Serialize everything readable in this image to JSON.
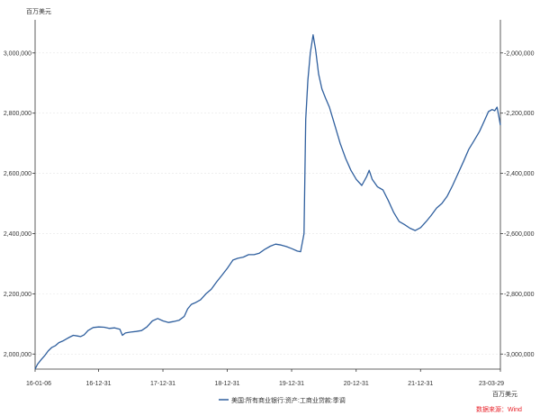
{
  "chart_data": {
    "type": "line",
    "y_unit_left": "百万美元",
    "y_unit_right": "百万美元",
    "source": "数据来源：Wind",
    "x_ticks": [
      "16-01-06",
      "16-12-31",
      "17-12-31",
      "18-12-31",
      "19-12-31",
      "20-12-31",
      "21-12-31",
      "23-03-29"
    ],
    "x_range": [
      "2016-01-06",
      "2023-03-29"
    ],
    "y_left_ticks": [
      "2,000,000",
      "2,200,000",
      "2,400,000",
      "2,600,000",
      "2,800,000",
      "3,000,000"
    ],
    "y_right_ticks": [
      "-2,000,000",
      "-2,200,000",
      "-2,400,000",
      "-2,600,000",
      "-2,800,000",
      "-3,000,000"
    ],
    "y_left_range": [
      1950000,
      3110000
    ],
    "y_right_range": [
      -3050000,
      -1890000
    ],
    "grid": true,
    "legend_position": "bottom",
    "colors": {
      "line": "#2f5f9e",
      "axis": "#333333",
      "grid": "#e6e6e6",
      "source": "#e8222a"
    },
    "series": [
      {
        "name": "美国:所有商业银行:资产:工商业贷款:季调",
        "points": [
          [
            "2016-01-06",
            1950000
          ],
          [
            "2016-01-20",
            1966000
          ],
          [
            "2016-02-10",
            1982000
          ],
          [
            "2016-03-01",
            1995000
          ],
          [
            "2016-03-20",
            2010000
          ],
          [
            "2016-04-10",
            2022000
          ],
          [
            "2016-05-01",
            2028000
          ],
          [
            "2016-05-20",
            2038000
          ],
          [
            "2016-06-10",
            2043000
          ],
          [
            "2016-07-01",
            2050000
          ],
          [
            "2016-07-20",
            2056000
          ],
          [
            "2016-08-10",
            2062000
          ],
          [
            "2016-09-01",
            2060000
          ],
          [
            "2016-09-20",
            2058000
          ],
          [
            "2016-10-10",
            2064000
          ],
          [
            "2016-11-01",
            2078000
          ],
          [
            "2016-12-01",
            2088000
          ],
          [
            "2017-01-01",
            2090000
          ],
          [
            "2017-02-01",
            2089000
          ],
          [
            "2017-03-01",
            2085000
          ],
          [
            "2017-04-01",
            2087000
          ],
          [
            "2017-05-01",
            2082000
          ],
          [
            "2017-05-15",
            2062000
          ],
          [
            "2017-06-01",
            2070000
          ],
          [
            "2017-07-01",
            2073000
          ],
          [
            "2017-08-01",
            2075000
          ],
          [
            "2017-09-01",
            2078000
          ],
          [
            "2017-10-01",
            2090000
          ],
          [
            "2017-11-01",
            2110000
          ],
          [
            "2017-12-01",
            2118000
          ],
          [
            "2018-01-01",
            2110000
          ],
          [
            "2018-02-01",
            2105000
          ],
          [
            "2018-03-01",
            2108000
          ],
          [
            "2018-04-01",
            2112000
          ],
          [
            "2018-05-01",
            2125000
          ],
          [
            "2018-05-20",
            2150000
          ],
          [
            "2018-06-10",
            2165000
          ],
          [
            "2018-07-01",
            2170000
          ],
          [
            "2018-08-01",
            2180000
          ],
          [
            "2018-09-01",
            2200000
          ],
          [
            "2018-10-01",
            2215000
          ],
          [
            "2018-11-01",
            2240000
          ],
          [
            "2018-12-01",
            2262000
          ],
          [
            "2019-01-01",
            2285000
          ],
          [
            "2019-02-01",
            2312000
          ],
          [
            "2019-03-01",
            2318000
          ],
          [
            "2019-04-01",
            2322000
          ],
          [
            "2019-05-01",
            2330000
          ],
          [
            "2019-06-01",
            2330000
          ],
          [
            "2019-07-01",
            2335000
          ],
          [
            "2019-08-01",
            2348000
          ],
          [
            "2019-09-01",
            2358000
          ],
          [
            "2019-10-01",
            2365000
          ],
          [
            "2019-11-01",
            2362000
          ],
          [
            "2019-12-01",
            2357000
          ],
          [
            "2020-01-01",
            2350000
          ],
          [
            "2020-02-01",
            2342000
          ],
          [
            "2020-02-20",
            2340000
          ],
          [
            "2020-03-10",
            2400000
          ],
          [
            "2020-03-20",
            2780000
          ],
          [
            "2020-04-01",
            2910000
          ],
          [
            "2020-04-15",
            3000000
          ],
          [
            "2020-05-01",
            3060000
          ],
          [
            "2020-05-15",
            3010000
          ],
          [
            "2020-06-01",
            2930000
          ],
          [
            "2020-06-20",
            2880000
          ],
          [
            "2020-07-10",
            2850000
          ],
          [
            "2020-08-01",
            2820000
          ],
          [
            "2020-09-01",
            2760000
          ],
          [
            "2020-10-01",
            2700000
          ],
          [
            "2020-11-01",
            2650000
          ],
          [
            "2020-12-01",
            2610000
          ],
          [
            "2021-01-01",
            2580000
          ],
          [
            "2021-02-01",
            2560000
          ],
          [
            "2021-03-01",
            2590000
          ],
          [
            "2021-03-15",
            2610000
          ],
          [
            "2021-04-01",
            2580000
          ],
          [
            "2021-05-01",
            2555000
          ],
          [
            "2021-06-01",
            2545000
          ],
          [
            "2021-07-01",
            2510000
          ],
          [
            "2021-08-01",
            2470000
          ],
          [
            "2021-09-01",
            2440000
          ],
          [
            "2021-10-01",
            2430000
          ],
          [
            "2021-11-01",
            2418000
          ],
          [
            "2021-12-01",
            2410000
          ],
          [
            "2022-01-01",
            2420000
          ],
          [
            "2022-02-01",
            2440000
          ],
          [
            "2022-03-01",
            2460000
          ],
          [
            "2022-04-01",
            2485000
          ],
          [
            "2022-05-01",
            2500000
          ],
          [
            "2022-06-01",
            2525000
          ],
          [
            "2022-07-01",
            2560000
          ],
          [
            "2022-08-01",
            2600000
          ],
          [
            "2022-09-01",
            2640000
          ],
          [
            "2022-10-01",
            2680000
          ],
          [
            "2022-11-01",
            2710000
          ],
          [
            "2022-12-01",
            2740000
          ],
          [
            "2023-01-01",
            2780000
          ],
          [
            "2023-01-20",
            2805000
          ],
          [
            "2023-02-10",
            2812000
          ],
          [
            "2023-02-25",
            2808000
          ],
          [
            "2023-03-10",
            2820000
          ],
          [
            "2023-03-20",
            2790000
          ],
          [
            "2023-03-29",
            2760000
          ]
        ]
      }
    ]
  }
}
